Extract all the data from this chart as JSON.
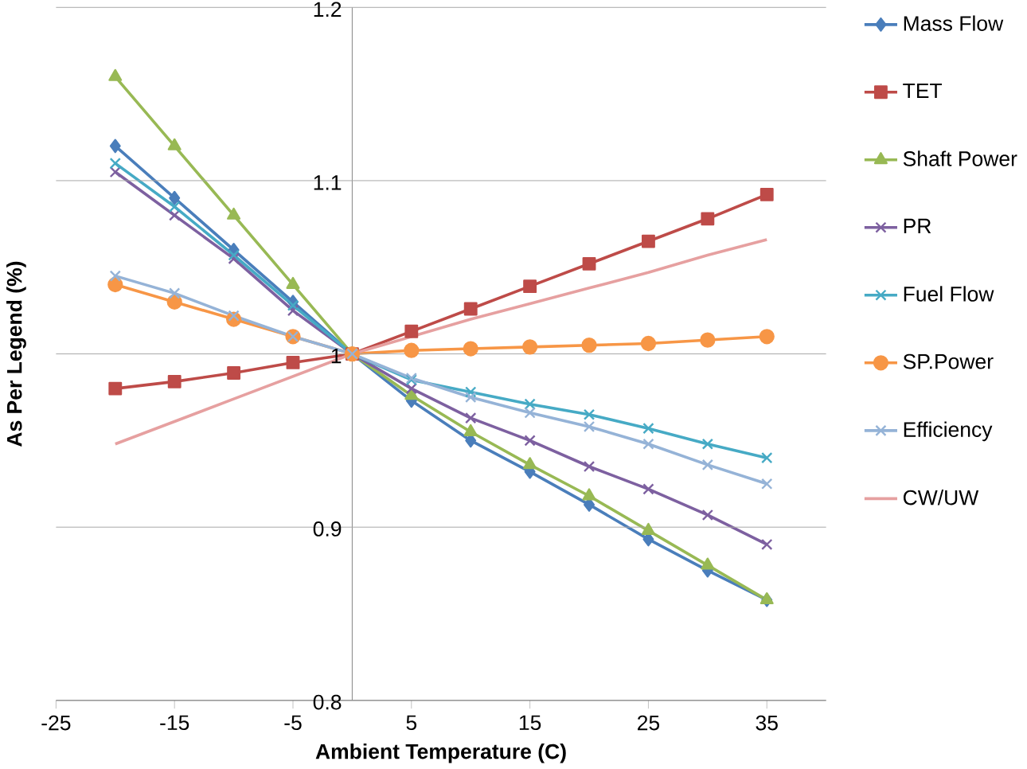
{
  "chart_data": {
    "type": "line",
    "xlabel": "Ambient Temperature (C)",
    "ylabel": "As Per Legend (%)",
    "x": [
      -20,
      -15,
      -10,
      -5,
      0,
      5,
      10,
      15,
      20,
      25,
      30,
      35
    ],
    "xlim": [
      -25,
      40
    ],
    "xticks": [
      -25,
      -15,
      -5,
      5,
      15,
      25,
      35
    ],
    "ylim": [
      0.8,
      1.2
    ],
    "yticks": [
      0.8,
      0.9,
      1,
      1.1,
      1.2
    ],
    "grid": "y",
    "legend": "right",
    "series": [
      {
        "name": "Mass Flow",
        "color": "#4a7ebb",
        "marker": "diamond",
        "values": [
          1.12,
          1.09,
          1.06,
          1.03,
          1,
          0.973,
          0.95,
          0.932,
          0.913,
          0.893,
          0.875,
          0.858
        ]
      },
      {
        "name": "TET",
        "color": "#be4b48",
        "marker": "square",
        "values": [
          0.98,
          0.984,
          0.989,
          0.995,
          1,
          1.013,
          1.026,
          1.039,
          1.052,
          1.065,
          1.078,
          1.092
        ]
      },
      {
        "name": "Shaft Power",
        "color": "#98b954",
        "marker": "triangle",
        "values": [
          1.16,
          1.12,
          1.08,
          1.04,
          1,
          0.976,
          0.955,
          0.936,
          0.918,
          0.898,
          0.878,
          0.858
        ]
      },
      {
        "name": "PR",
        "color": "#7d60a0",
        "marker": "cross",
        "values": [
          1.105,
          1.08,
          1.055,
          1.025,
          1,
          0.98,
          0.963,
          0.95,
          0.935,
          0.922,
          0.907,
          0.89
        ]
      },
      {
        "name": "Fuel Flow",
        "color": "#46aac5",
        "marker": "cross",
        "values": [
          1.11,
          1.085,
          1.057,
          1.028,
          1,
          0.985,
          0.978,
          0.971,
          0.965,
          0.957,
          0.948,
          0.94
        ]
      },
      {
        "name": "SP.Power",
        "color": "#f79646",
        "marker": "circle",
        "values": [
          1.04,
          1.03,
          1.02,
          1.01,
          1,
          1.002,
          1.003,
          1.004,
          1.005,
          1.006,
          1.008,
          1.01
        ]
      },
      {
        "name": "Efficiency",
        "color": "#95b3d7",
        "marker": "cross",
        "values": [
          1.045,
          1.035,
          1.022,
          1.01,
          1,
          0.986,
          0.975,
          0.966,
          0.958,
          0.948,
          0.936,
          0.925
        ]
      },
      {
        "name": "CW/UW",
        "color": "#e6a0a0",
        "marker": "none",
        "values": [
          0.948,
          0.961,
          0.974,
          0.987,
          1,
          1.01,
          1.02,
          1.029,
          1.038,
          1.047,
          1.057,
          1.066
        ]
      }
    ]
  }
}
